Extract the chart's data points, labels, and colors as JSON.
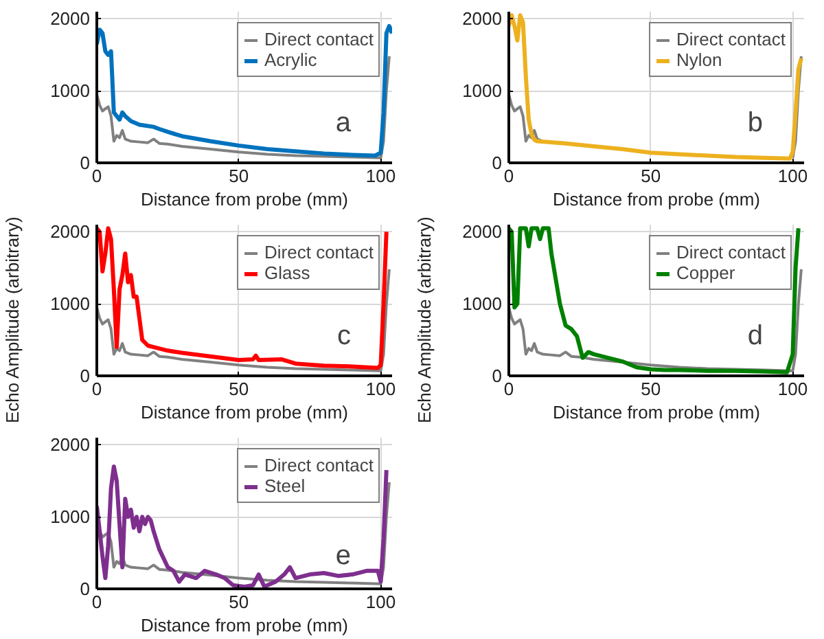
{
  "chart_data": [
    {
      "type": "line",
      "xlabel": "Distance from probe (mm)",
      "xlim": [
        0,
        104
      ],
      "ylim": [
        0,
        2100
      ],
      "xticks": [
        0,
        50,
        100
      ],
      "yticks": [
        0,
        1000,
        2000
      ],
      "grid": true,
      "legend": "top right",
      "annotations": [
        "a"
      ],
      "series": [
        {
          "name": "Direct contact",
          "color": "#808080",
          "x": [
            0,
            1,
            2,
            3,
            4,
            5,
            6,
            7,
            8,
            9,
            10,
            12,
            15,
            18,
            20,
            22,
            25,
            30,
            40,
            50,
            60,
            70,
            80,
            90,
            100,
            101,
            102,
            103
          ],
          "values": [
            950,
            800,
            720,
            750,
            780,
            650,
            300,
            380,
            350,
            450,
            330,
            300,
            290,
            280,
            330,
            270,
            260,
            230,
            190,
            150,
            120,
            100,
            90,
            80,
            70,
            300,
            1000,
            1480
          ]
        },
        {
          "name": "Acrylic",
          "color": "#0072bd",
          "x": [
            0,
            1,
            2,
            3,
            4,
            5,
            6,
            7,
            8,
            9,
            10,
            12,
            15,
            20,
            22,
            25,
            30,
            40,
            50,
            60,
            70,
            80,
            90,
            98,
            100,
            101,
            102,
            103,
            104
          ],
          "values": [
            1650,
            1850,
            1800,
            1550,
            1500,
            1550,
            700,
            650,
            600,
            700,
            650,
            580,
            530,
            500,
            470,
            430,
            370,
            300,
            240,
            190,
            160,
            130,
            110,
            100,
            140,
            700,
            1800,
            1900,
            1800
          ]
        }
      ]
    },
    {
      "type": "line",
      "xlabel": "Distance from probe (mm)",
      "xlim": [
        0,
        104
      ],
      "ylim": [
        0,
        2100
      ],
      "xticks": [
        0,
        50,
        100
      ],
      "yticks": [
        0,
        1000,
        2000
      ],
      "grid": true,
      "legend": "top right",
      "annotations": [
        "b"
      ],
      "series": [
        {
          "name": "Direct contact",
          "color": "#808080",
          "x": [
            0,
            1,
            2,
            3,
            4,
            5,
            6,
            7,
            8,
            9,
            10,
            12,
            15,
            18,
            20,
            22,
            25,
            30,
            40,
            50,
            60,
            70,
            80,
            90,
            100,
            101,
            102,
            103
          ],
          "values": [
            950,
            800,
            720,
            750,
            780,
            650,
            300,
            380,
            350,
            450,
            330,
            300,
            null,
            null,
            null,
            null,
            null,
            null,
            null,
            null,
            null,
            null,
            null,
            null,
            70,
            300,
            1000,
            1480
          ]
        },
        {
          "name": "Nylon",
          "color": "#edb120",
          "x": [
            0,
            1,
            2,
            3,
            4,
            5,
            6,
            7,
            8,
            9,
            10,
            20,
            30,
            40,
            50,
            60,
            70,
            80,
            90,
            99,
            100,
            101,
            102,
            103
          ],
          "values": [
            1900,
            2050,
            1900,
            1700,
            2050,
            1950,
            1200,
            600,
            400,
            320,
            300,
            270,
            230,
            190,
            140,
            120,
            100,
            80,
            70,
            60,
            150,
            700,
            1300,
            1450
          ]
        }
      ]
    },
    {
      "type": "line",
      "xlabel": "Distance from probe (mm)",
      "ylabel": "Echo Amplitude (arbitrary)",
      "xlim": [
        0,
        104
      ],
      "ylim": [
        0,
        2100
      ],
      "xticks": [
        0,
        50,
        100
      ],
      "yticks": [
        0,
        1000,
        2000
      ],
      "grid": true,
      "legend": "top right",
      "annotations": [
        "c"
      ],
      "series": [
        {
          "name": "Direct contact",
          "color": "#808080",
          "x": [
            0,
            1,
            2,
            3,
            4,
            5,
            6,
            7,
            8,
            9,
            10,
            12,
            15,
            18,
            20,
            22,
            25,
            30,
            40,
            50,
            60,
            70,
            80,
            90,
            100,
            101,
            102,
            103
          ],
          "values": [
            950,
            800,
            720,
            750,
            780,
            650,
            300,
            380,
            350,
            450,
            330,
            300,
            290,
            280,
            330,
            270,
            260,
            230,
            190,
            150,
            120,
            100,
            90,
            80,
            70,
            300,
            1000,
            1480
          ]
        },
        {
          "name": "Glass",
          "color": "#ff0000",
          "x": [
            0,
            1,
            2,
            3,
            4,
            5,
            6,
            7,
            8,
            9,
            10,
            11,
            12,
            13,
            14,
            15,
            16,
            18,
            20,
            25,
            30,
            40,
            50,
            55,
            56,
            57,
            65,
            70,
            80,
            90,
            99,
            100,
            101,
            102
          ],
          "values": [
            2050,
            2000,
            1450,
            1700,
            2050,
            1900,
            1200,
            400,
            1200,
            1400,
            1700,
            1300,
            1400,
            1100,
            1100,
            800,
            500,
            420,
            400,
            350,
            320,
            270,
            220,
            230,
            280,
            220,
            230,
            170,
            140,
            130,
            110,
            150,
            1000,
            2000
          ]
        }
      ]
    },
    {
      "type": "line",
      "xlabel": "Distance from probe (mm)",
      "ylabel": "Echo Amplitude (arbitrary)",
      "xlim": [
        0,
        104
      ],
      "ylim": [
        0,
        2100
      ],
      "xticks": [
        0,
        50,
        100
      ],
      "yticks": [
        0,
        1000,
        2000
      ],
      "grid": true,
      "legend": "top right",
      "annotations": [
        "d"
      ],
      "series": [
        {
          "name": "Direct contact",
          "color": "#808080",
          "x": [
            0,
            1,
            2,
            3,
            4,
            5,
            6,
            7,
            8,
            9,
            10,
            12,
            15,
            18,
            20,
            22,
            25,
            30,
            40,
            50,
            60,
            70,
            80,
            90,
            100,
            101,
            102,
            103
          ],
          "values": [
            950,
            800,
            720,
            750,
            780,
            650,
            300,
            380,
            350,
            450,
            330,
            300,
            290,
            280,
            330,
            270,
            260,
            230,
            190,
            150,
            120,
            100,
            90,
            80,
            70,
            300,
            1000,
            1480
          ]
        },
        {
          "name": "Copper",
          "color": "#008000",
          "x": [
            0,
            1,
            2,
            3,
            4,
            6,
            7,
            8,
            10,
            11,
            12,
            14,
            15,
            18,
            20,
            22,
            24,
            26,
            28,
            30,
            35,
            40,
            45,
            50,
            55,
            60,
            70,
            80,
            90,
            98,
            100,
            101,
            102
          ],
          "values": [
            2050,
            2000,
            950,
            1000,
            2050,
            2050,
            1800,
            2050,
            2050,
            1900,
            2050,
            2050,
            1700,
            1000,
            700,
            650,
            550,
            250,
            330,
            300,
            250,
            200,
            120,
            90,
            80,
            80,
            70,
            70,
            60,
            50,
            300,
            1500,
            2050
          ]
        }
      ]
    },
    {
      "type": "line",
      "xlabel": "Distance from probe (mm)",
      "xlim": [
        0,
        104
      ],
      "ylim": [
        0,
        2100
      ],
      "xticks": [
        0,
        50,
        100
      ],
      "yticks": [
        0,
        1000,
        2000
      ],
      "grid": true,
      "legend": "top right",
      "annotations": [
        "e"
      ],
      "series": [
        {
          "name": "Direct contact",
          "color": "#808080",
          "x": [
            0,
            1,
            2,
            3,
            4,
            5,
            6,
            7,
            8,
            9,
            10,
            12,
            15,
            18,
            20,
            22,
            25,
            30,
            40,
            50,
            60,
            70,
            80,
            90,
            100,
            101,
            102,
            103
          ],
          "values": [
            950,
            800,
            720,
            750,
            780,
            650,
            300,
            380,
            350,
            450,
            330,
            300,
            290,
            280,
            330,
            270,
            260,
            230,
            190,
            150,
            120,
            100,
            90,
            80,
            70,
            300,
            1000,
            1480
          ]
        },
        {
          "name": "Steel",
          "color": "#7e2f8e",
          "x": [
            0,
            1,
            2,
            3,
            4,
            5,
            6,
            7,
            8,
            9,
            10,
            11,
            12,
            13,
            14,
            15,
            16,
            17,
            18,
            19,
            20,
            22,
            25,
            27,
            29,
            31,
            35,
            38,
            42,
            45,
            48,
            52,
            55,
            57,
            59,
            63,
            66,
            68,
            70,
            75,
            80,
            85,
            90,
            95,
            99,
            100,
            101,
            102
          ],
          "values": [
            1150,
            800,
            450,
            150,
            600,
            1400,
            1700,
            1500,
            900,
            300,
            1250,
            1000,
            1100,
            850,
            1000,
            800,
            1000,
            900,
            1000,
            950,
            800,
            550,
            300,
            250,
            100,
            200,
            150,
            250,
            200,
            150,
            50,
            30,
            50,
            200,
            30,
            100,
            200,
            300,
            150,
            200,
            220,
            180,
            200,
            250,
            250,
            100,
            700,
            1650
          ]
        }
      ]
    }
  ]
}
